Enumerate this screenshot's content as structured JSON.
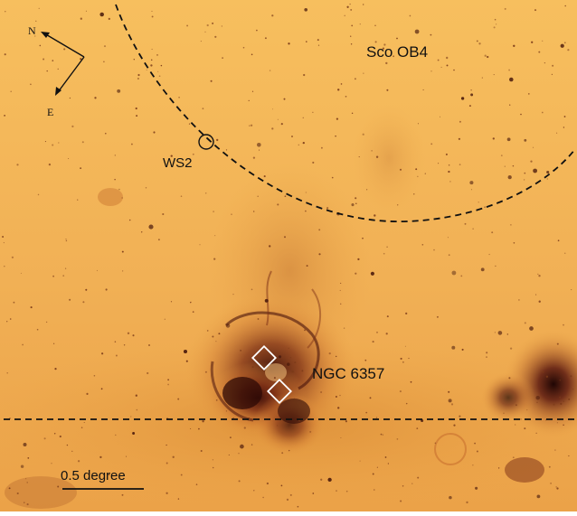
{
  "compass": {
    "north": "N",
    "east": "E"
  },
  "labels": {
    "region": "Sco OB4",
    "source": "WS2",
    "cluster": "NGC 6357"
  },
  "scale_bar": {
    "label": "0.5 degree"
  },
  "colors": {
    "sky_light": "#f5ba57",
    "sky_mid": "#e9a044",
    "nebula_dark": "#5a1810",
    "nebula_core": "#2e0a06",
    "marker": "#ffffff",
    "annotation": "#111111"
  }
}
